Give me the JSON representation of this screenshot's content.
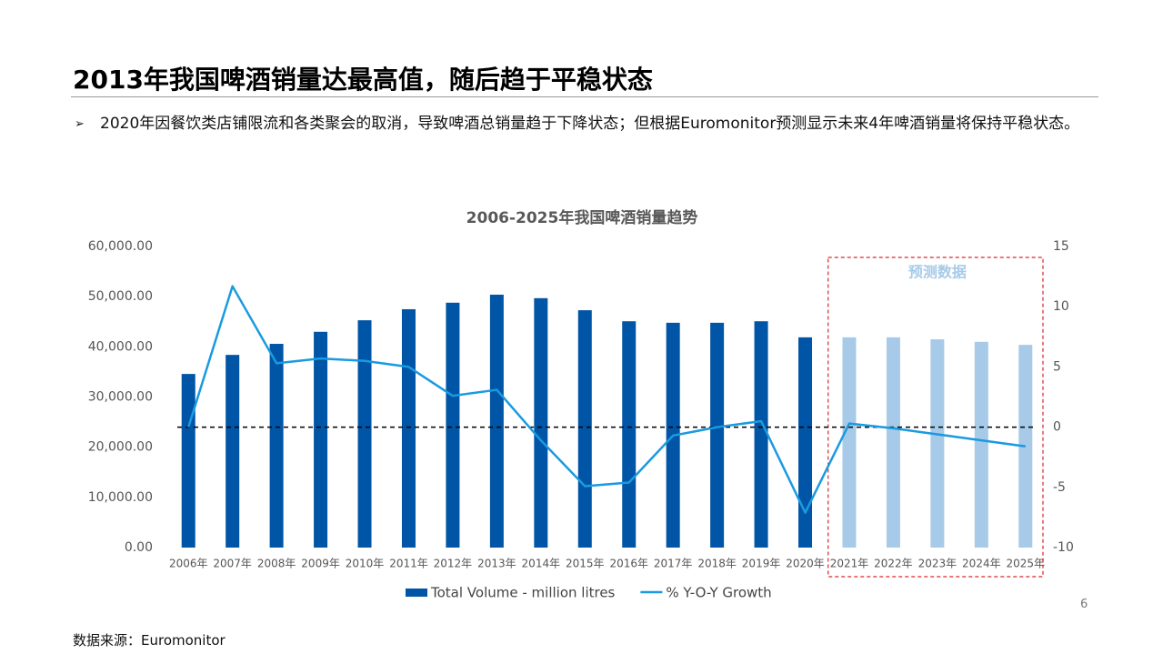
{
  "header": {
    "title": "2013年我国啤酒销量达最高值，随后趋于平稳状态"
  },
  "bullet": {
    "marker": "➢",
    "text": "2020年因餐饮类店铺限流和各类聚会的取消，导致啤酒总销量趋于下降状态；但根据Euromonitor预测显示未来4年啤酒销量将保持平稳状态。"
  },
  "page_number": "6",
  "source": "数据来源：Euromonitor",
  "chart_data": {
    "type": "bar-line",
    "title": "2006-2025年我国啤酒销量趋势",
    "categories": [
      "2006年",
      "2007年",
      "2008年",
      "2009年",
      "2010年",
      "2011年",
      "2012年",
      "2013年",
      "2014年",
      "2015年",
      "2016年",
      "2017年",
      "2018年",
      "2019年",
      "2020年",
      "2021年",
      "2022年",
      "2023年",
      "2024年",
      "2025年"
    ],
    "series": [
      {
        "name": "Total Volume - million litres",
        "type": "bar",
        "color": "#0055a6",
        "point_colors": [
          "#0055a6",
          "#0055a6",
          "#0055a6",
          "#0055a6",
          "#0055a6",
          "#0055a6",
          "#0055a6",
          "#0055a6",
          "#0055a6",
          "#0055a6",
          "#0055a6",
          "#0055a6",
          "#0055a6",
          "#0055a6",
          "#0055a6",
          "#a6cae8",
          "#a6cae8",
          "#a6cae8",
          "#a6cae8",
          "#a6cae8"
        ],
        "values": [
          34600,
          38400,
          40600,
          43000,
          45300,
          47500,
          48800,
          50400,
          49700,
          47300,
          45100,
          44800,
          44800,
          45100,
          41900,
          41900,
          41900,
          41500,
          41000,
          40400
        ]
      },
      {
        "name": "% Y-O-Y Growth",
        "type": "line",
        "axis": "y2",
        "color": "#1a9ae0",
        "values": [
          0,
          11.7,
          5.3,
          5.7,
          5.5,
          5.0,
          2.6,
          3.1,
          -1.1,
          -4.9,
          -4.6,
          -0.7,
          0,
          0.5,
          -7.1,
          0.3,
          -0.1,
          -0.6,
          -1.1,
          -1.6
        ]
      }
    ],
    "ylim": [
      0,
      60000
    ],
    "yticks": [
      {
        "value": 0,
        "label": "0.00"
      },
      {
        "value": 10000,
        "label": "10,000.00"
      },
      {
        "value": 20000,
        "label": "20,000.00"
      },
      {
        "value": 30000,
        "label": "30,000.00"
      },
      {
        "value": 40000,
        "label": "40,000.00"
      },
      {
        "value": 50000,
        "label": "50,000.00"
      },
      {
        "value": 60000,
        "label": "60,000.00"
      }
    ],
    "y2lim": [
      -10,
      15
    ],
    "y2ticks": [
      -10,
      -5,
      0,
      5,
      10,
      15
    ],
    "y2_zero_line": true,
    "annotation": {
      "text": "预测数据",
      "from": "2021年",
      "to": "2025年",
      "color": "#d9262c"
    },
    "legend": "bottom"
  }
}
